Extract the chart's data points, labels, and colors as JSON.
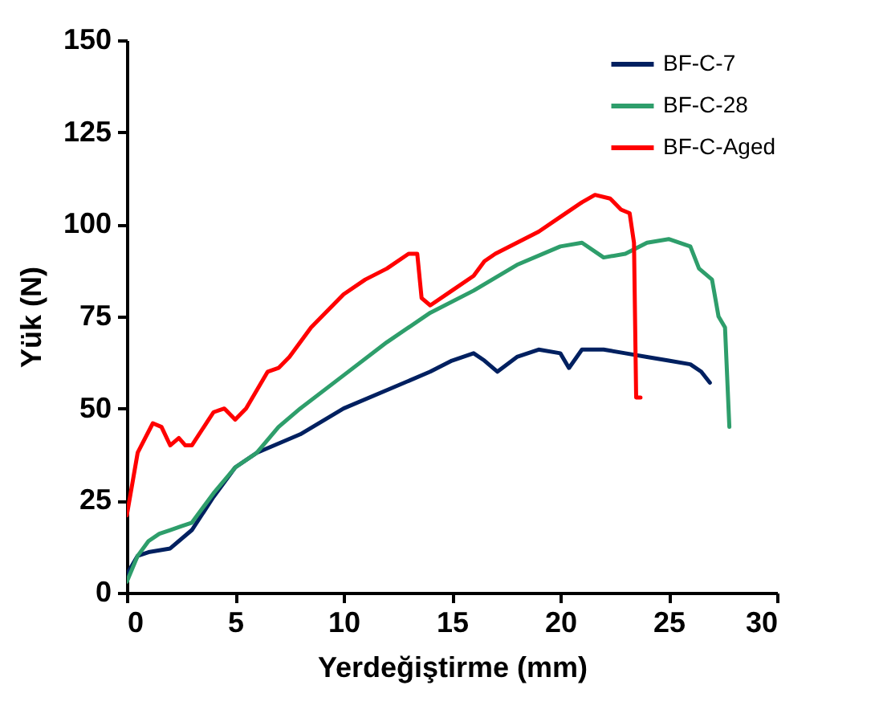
{
  "chart_data": {
    "type": "line",
    "xlabel": "Yerdeğiştirme (mm)",
    "ylabel": "Yük (N)",
    "xlim": [
      0,
      30
    ],
    "ylim": [
      0,
      150
    ],
    "xticks": [
      0,
      5,
      10,
      15,
      20,
      25,
      30
    ],
    "yticks": [
      0,
      25,
      50,
      75,
      100,
      125,
      150
    ],
    "grid": false,
    "legend": "top right",
    "marker": "none",
    "line_style": "solid",
    "series": [
      {
        "name": "BF-C-7",
        "color": "#002060",
        "x": [
          0,
          0.5,
          1,
          2,
          3,
          4,
          5,
          6,
          8,
          10,
          12,
          14,
          15,
          16,
          16.5,
          17.1,
          18,
          19,
          20,
          20.4,
          21,
          22,
          23,
          24,
          25,
          26,
          26.5,
          26.9
        ],
        "values": [
          5,
          10,
          11,
          12,
          17,
          26,
          34,
          38,
          43,
          50,
          55,
          60,
          63,
          65,
          63,
          60,
          64,
          66,
          65,
          61,
          66,
          66,
          65,
          64,
          63,
          62,
          60,
          57
        ]
      },
      {
        "name": "BF-C-28",
        "color": "#2e9e6b",
        "x": [
          0,
          0.5,
          1,
          1.5,
          2,
          2.5,
          3,
          4,
          5,
          6,
          7,
          8,
          10,
          12,
          14,
          16,
          18,
          20,
          21,
          22,
          23,
          24,
          25,
          26,
          26.4,
          27,
          27.3,
          27.6,
          27.8
        ],
        "values": [
          3,
          10,
          14,
          16,
          17,
          18,
          19,
          27,
          34,
          38,
          45,
          50,
          59,
          68,
          76,
          82,
          89,
          94,
          95,
          91,
          92,
          95,
          96,
          94,
          88,
          85,
          75,
          72,
          45
        ]
      },
      {
        "name": "BF-C-Aged",
        "color": "#ff0000",
        "x": [
          0,
          0.5,
          1.2,
          1.6,
          2,
          2.4,
          2.7,
          3,
          4,
          4.5,
          5,
          5.5,
          6.5,
          7,
          7.5,
          8.5,
          10,
          11,
          12,
          13,
          13.4,
          13.6,
          14,
          15,
          16,
          16.5,
          17,
          18,
          19,
          20,
          21,
          21.6,
          22.3,
          22.8,
          23.2,
          23.4,
          23.5,
          23.7
        ],
        "values": [
          21,
          38,
          46,
          45,
          40,
          42,
          40,
          40,
          49,
          50,
          47,
          50,
          60,
          61,
          64,
          72,
          81,
          85,
          88,
          92,
          92,
          80,
          78,
          82,
          86,
          90,
          92,
          95,
          98,
          102,
          106,
          108,
          107,
          104,
          103,
          95,
          53,
          53
        ]
      }
    ]
  }
}
